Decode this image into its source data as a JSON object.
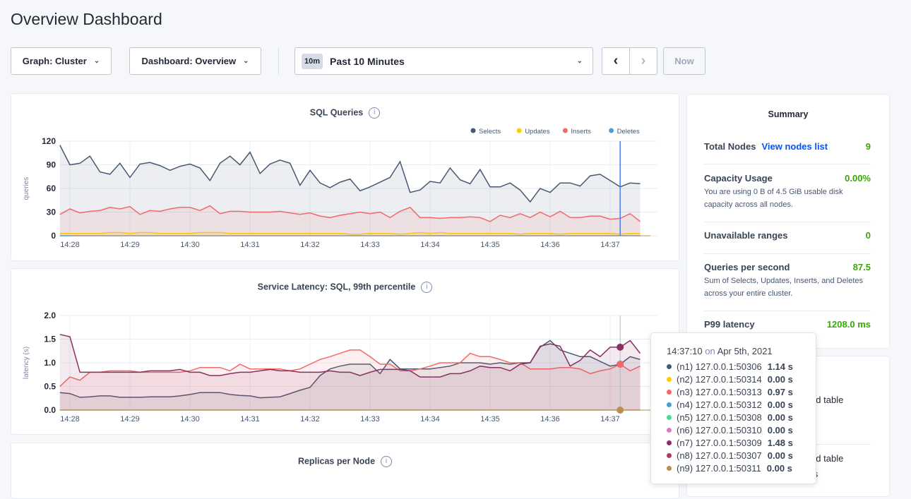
{
  "page_title": "Overview Dashboard",
  "controls": {
    "graph": "Graph: Cluster",
    "dashboard": "Dashboard: Overview",
    "time_badge": "10m",
    "time_range": "Past 10 Minutes",
    "prev_icon": "chevron-left-icon",
    "next_icon": "chevron-right-icon",
    "now": "Now"
  },
  "chart_data": [
    {
      "type": "area",
      "title": "SQL Queries",
      "ylabel": "queries",
      "ylim": [
        0,
        120
      ],
      "yticks": [
        0,
        30,
        60,
        90,
        120
      ],
      "xtick_labels": [
        "14:28",
        "14:29",
        "14:30",
        "14:31",
        "14:32",
        "14:33",
        "14:34",
        "14:35",
        "14:36",
        "14:37"
      ],
      "x": [
        "14:27:50",
        "14:28:00",
        "14:28:10",
        "14:28:20",
        "14:28:30",
        "14:28:40",
        "14:28:50",
        "14:29:00",
        "14:29:10",
        "14:29:20",
        "14:29:30",
        "14:29:40",
        "14:29:50",
        "14:30:00",
        "14:30:10",
        "14:30:20",
        "14:30:30",
        "14:30:40",
        "14:30:50",
        "14:31:00",
        "14:31:10",
        "14:31:20",
        "14:31:30",
        "14:31:40",
        "14:31:50",
        "14:32:00",
        "14:32:10",
        "14:32:20",
        "14:32:30",
        "14:32:40",
        "14:32:50",
        "14:33:00",
        "14:33:10",
        "14:33:20",
        "14:33:30",
        "14:33:40",
        "14:33:50",
        "14:34:00",
        "14:34:10",
        "14:34:20",
        "14:34:30",
        "14:34:40",
        "14:34:50",
        "14:35:00",
        "14:35:10",
        "14:35:20",
        "14:35:30",
        "14:35:40",
        "14:35:50",
        "14:36:00",
        "14:36:10",
        "14:36:20",
        "14:36:30",
        "14:36:40",
        "14:36:50",
        "14:37:00",
        "14:37:10",
        "14:37:20",
        "14:37:30"
      ],
      "hover_x": "14:37:10",
      "legend": "top-right",
      "grid": true,
      "series": [
        {
          "name": "Selects",
          "color": "#475872",
          "values": [
            115,
            90,
            92,
            101,
            81,
            78,
            92,
            74,
            91,
            93,
            89,
            83,
            88,
            91,
            86,
            70,
            92,
            101,
            90,
            106,
            79,
            91,
            96,
            92,
            64,
            83,
            67,
            61,
            68,
            72,
            57,
            62,
            68,
            74,
            94,
            55,
            58,
            69,
            67,
            86,
            71,
            66,
            84,
            62,
            62,
            67,
            58,
            43,
            60,
            55,
            67,
            67,
            63,
            76,
            78,
            70,
            62,
            67,
            66
          ]
        },
        {
          "name": "Updates",
          "color": "#ffcd02",
          "values": [
            3,
            3,
            3,
            3,
            3,
            4,
            4,
            3,
            4,
            4,
            3,
            3,
            3,
            3,
            4,
            4,
            4,
            3,
            3,
            3,
            3,
            3,
            3,
            3,
            3,
            3,
            3,
            3,
            3,
            2,
            2,
            3,
            3,
            3,
            2,
            3,
            4,
            3,
            4,
            3,
            3,
            3,
            3,
            3,
            3,
            3,
            2,
            3,
            3,
            3,
            2,
            3,
            3,
            3,
            3,
            3,
            2,
            3,
            3
          ]
        },
        {
          "name": "Inserts",
          "color": "#f16969",
          "values": [
            27,
            34,
            29,
            31,
            32,
            36,
            34,
            37,
            27,
            32,
            31,
            34,
            36,
            36,
            32,
            38,
            28,
            31,
            31,
            30,
            30,
            30,
            31,
            29,
            27,
            29,
            25,
            23,
            26,
            28,
            30,
            28,
            30,
            23,
            31,
            36,
            23,
            23,
            22,
            23,
            23,
            24,
            23,
            18,
            26,
            23,
            28,
            23,
            30,
            24,
            31,
            23,
            23,
            25,
            25,
            21,
            22,
            28,
            18
          ]
        },
        {
          "name": "Deletes",
          "color": "#4e9fd1",
          "values": [
            0,
            0,
            0,
            0,
            0,
            0,
            0,
            0,
            0,
            0,
            0,
            0,
            0,
            0,
            0,
            0,
            0,
            0,
            0,
            0,
            0,
            0,
            0,
            0,
            0,
            0,
            0,
            0,
            0,
            0,
            0,
            0,
            0,
            0,
            0,
            0,
            0,
            0,
            0,
            0,
            0,
            0,
            0,
            0,
            0,
            0,
            0,
            0,
            0,
            0,
            0,
            0,
            0,
            0,
            0,
            0,
            0,
            0,
            0
          ]
        }
      ]
    },
    {
      "type": "area",
      "title": "Service Latency: SQL, 99th percentile",
      "ylabel": "latency (s)",
      "ylim": [
        0,
        2
      ],
      "yticks": [
        "0.0",
        "0.5",
        "1.0",
        "1.5",
        "2.0"
      ],
      "xtick_labels": [
        "14:28",
        "14:29",
        "14:30",
        "14:31",
        "14:32",
        "14:33",
        "14:34",
        "14:35",
        "14:36",
        "14:37"
      ],
      "hover_x": "14:37:10",
      "grid": true,
      "series": [
        {
          "name": "(n1) 127.0.0.1:50306",
          "color": "#475872",
          "values": [
            0.37,
            0.35,
            0.27,
            0.28,
            0.3,
            0.3,
            0.27,
            0.27,
            0.27,
            0.28,
            0.28,
            0.28,
            0.3,
            0.33,
            0.37,
            0.37,
            0.37,
            0.33,
            0.31,
            0.3,
            0.26,
            0.27,
            0.28,
            0.35,
            0.42,
            0.48,
            0.73,
            0.87,
            0.93,
            0.97,
            0.97,
            0.97,
            0.77,
            1.07,
            0.87,
            0.87,
            0.87,
            0.87,
            0.9,
            0.93,
            1.0,
            1.0,
            1.0,
            0.97,
            1.0,
            0.97,
            1.0,
            1.0,
            1.33,
            1.47,
            1.27,
            1.2,
            1.13,
            1.13,
            1.03,
            0.93,
            0.97,
            1.13,
            1.07
          ]
        },
        {
          "name": "(n3) 127.0.0.1:50313",
          "color": "#f16969",
          "values": [
            0.5,
            0.7,
            0.63,
            0.8,
            0.8,
            0.83,
            0.83,
            0.83,
            0.8,
            0.8,
            0.8,
            0.8,
            0.8,
            0.83,
            0.9,
            0.9,
            0.9,
            0.83,
            0.97,
            0.87,
            0.87,
            0.87,
            0.87,
            0.83,
            0.87,
            0.97,
            1.07,
            1.13,
            1.2,
            1.27,
            1.27,
            1.13,
            0.97,
            0.97,
            0.83,
            0.83,
            0.87,
            0.93,
            1.0,
            1.0,
            1.0,
            1.2,
            1.13,
            1.13,
            1.07,
            1.0,
            1.0,
            0.87,
            0.87,
            0.87,
            0.9,
            0.9,
            0.87,
            0.77,
            0.83,
            0.87,
            0.97,
            0.83,
            0.93
          ]
        },
        {
          "name": "(n7) 127.0.0.1:50309",
          "color": "#883061",
          "values": [
            1.6,
            1.55,
            0.8,
            0.8,
            0.8,
            0.8,
            0.8,
            0.8,
            0.8,
            0.83,
            0.83,
            0.83,
            0.86,
            0.8,
            0.8,
            0.73,
            0.73,
            0.77,
            0.8,
            0.8,
            0.83,
            0.86,
            0.83,
            0.83,
            0.8,
            0.8,
            0.8,
            0.83,
            0.8,
            0.8,
            0.73,
            0.8,
            0.86,
            0.86,
            0.86,
            0.83,
            0.7,
            0.7,
            0.7,
            0.77,
            0.77,
            0.83,
            0.93,
            0.9,
            0.9,
            0.83,
            0.97,
            1.0,
            1.35,
            1.4,
            1.35,
            0.93,
            1.05,
            1.27,
            1.13,
            1.33,
            1.33,
            1.47,
            1.2
          ]
        },
        {
          "name": "(n9) 127.0.0.1:50311",
          "color": "#b88d57",
          "values": [
            0,
            0,
            0,
            0,
            0,
            0,
            0,
            0,
            0,
            0,
            0,
            0,
            0,
            0,
            0,
            0,
            0,
            0,
            0,
            0,
            0,
            0,
            0,
            0,
            0,
            0,
            0,
            0,
            0,
            0,
            0,
            0,
            0,
            0,
            0,
            0,
            0,
            0,
            0,
            0,
            0,
            0,
            0,
            0,
            0,
            0,
            0,
            0,
            0,
            0,
            0,
            0,
            0,
            0,
            0,
            0,
            0,
            0,
            0
          ]
        }
      ]
    }
  ],
  "replicas": {
    "title": "Replicas per Node"
  },
  "summary": {
    "title": "Summary",
    "total_nodes": {
      "label": "Total Nodes",
      "link": "View nodes list",
      "value": "9"
    },
    "capacity": {
      "label": "Capacity Usage",
      "value": "0.00%",
      "desc": "You are using 0 B of 4.5 GiB usable disk capacity across all nodes."
    },
    "unavailable": {
      "label": "Unavailable ranges",
      "value": "0"
    },
    "qps": {
      "label": "Queries per second",
      "value": "87.5",
      "desc": "Sum of Selects, Updates, Inserts, and Deletes across your entire cluster."
    },
    "p99": {
      "label": "P99 latency",
      "value": "1208.0 ms"
    }
  },
  "events": {
    "items": [
      {
        "line1": "eated table"
      },
      {
        "line1": "eated table",
        "line2": "odes"
      }
    ]
  },
  "tooltip": {
    "time": "14:37:10",
    "on": "on",
    "date": "Apr 5th, 2021",
    "rows": [
      {
        "node": "(n1) 127.0.0.1:50306",
        "value": "1.14 s",
        "color": "#475872"
      },
      {
        "node": "(n2) 127.0.0.1:50314",
        "value": "0.00 s",
        "color": "#ffcd02"
      },
      {
        "node": "(n3) 127.0.0.1:50313",
        "value": "0.97 s",
        "color": "#f16969"
      },
      {
        "node": "(n4) 127.0.0.1:50312",
        "value": "0.00 s",
        "color": "#4e9fd1"
      },
      {
        "node": "(n5) 127.0.0.1:50308",
        "value": "0.00 s",
        "color": "#49d990"
      },
      {
        "node": "(n6) 127.0.0.1:50310",
        "value": "0.00 s",
        "color": "#d77fbf"
      },
      {
        "node": "(n7) 127.0.0.1:50309",
        "value": "1.48 s",
        "color": "#883061"
      },
      {
        "node": "(n8) 127.0.0.1:50307",
        "value": "0.00 s",
        "color": "#a3415b"
      },
      {
        "node": "(n9) 127.0.0.1:50311",
        "value": "0.00 s",
        "color": "#b88d57"
      }
    ]
  }
}
